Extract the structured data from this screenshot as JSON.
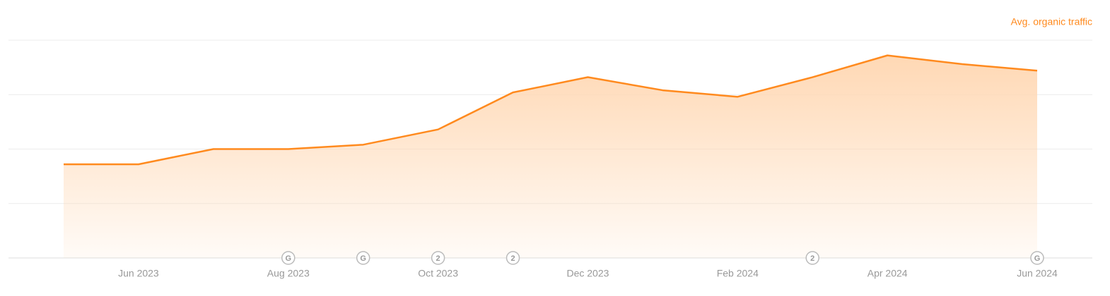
{
  "chart_data": {
    "type": "area",
    "categories": [
      null,
      "Jun 2023",
      null,
      "Aug 2023",
      null,
      "Oct 2023",
      null,
      "Dec 2023",
      null,
      "Feb 2024",
      null,
      "Apr 2024",
      null,
      "Jun 2024"
    ],
    "series": [
      {
        "name": "Avg. organic traffic",
        "color": "#ff8a1e",
        "values": [
          43,
          43,
          50,
          50,
          52,
          59,
          76,
          83,
          77,
          74,
          83,
          93,
          89,
          86
        ]
      }
    ],
    "ylim": [
      0,
      100
    ],
    "yticks": [
      0,
      25,
      50,
      75,
      100
    ],
    "grid": true,
    "annotations": [
      {
        "index": 3,
        "label": "G"
      },
      {
        "index": 4,
        "label": "G"
      },
      {
        "index": 5,
        "label": "2"
      },
      {
        "index": 6,
        "label": "2"
      },
      {
        "index": 10,
        "label": "2"
      },
      {
        "index": 13,
        "label": "G"
      }
    ]
  }
}
